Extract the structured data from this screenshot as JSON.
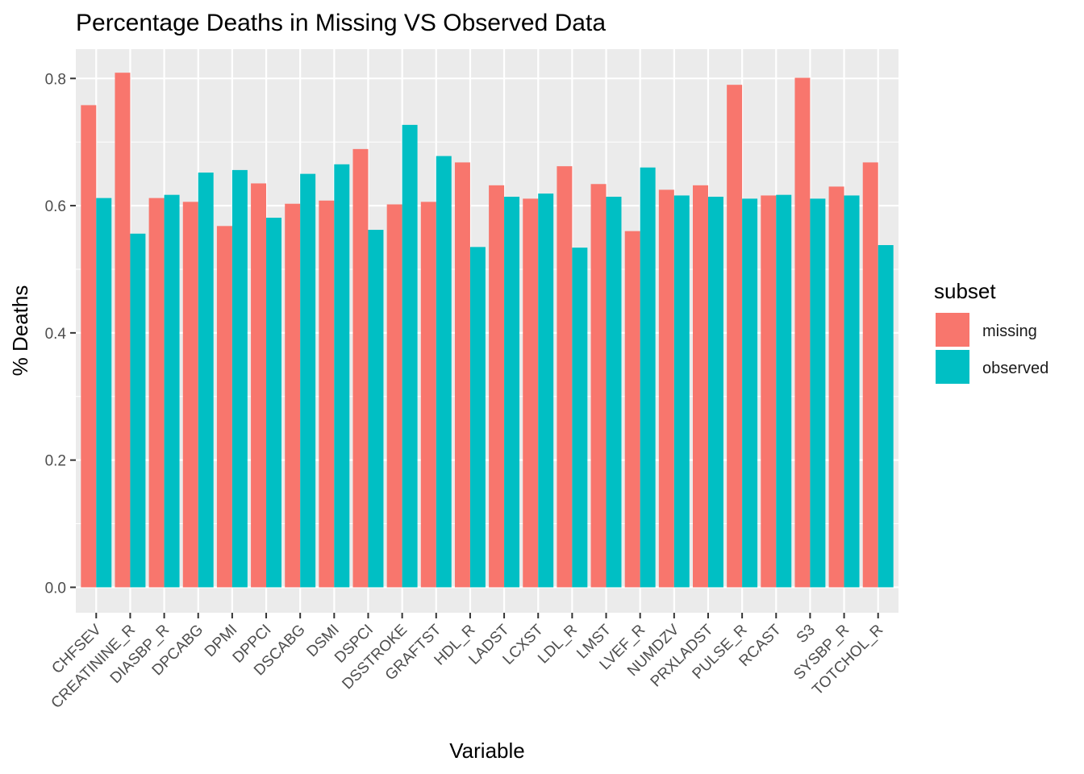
{
  "chart_data": {
    "type": "bar",
    "title": "Percentage Deaths in Missing VS Observed Data",
    "xlabel": "Variable",
    "ylabel": "% Deaths",
    "ylim": [
      -0.04,
      0.846
    ],
    "yticks": [
      0.0,
      0.2,
      0.4,
      0.6,
      0.8
    ],
    "ytick_labels": [
      "0.0",
      "0.2",
      "0.4",
      "0.6",
      "0.8"
    ],
    "grid": true,
    "legend": {
      "title": "subset",
      "placement": "right"
    },
    "categories": [
      "CHFSEV",
      "CREATININE_R",
      "DIASBP_R",
      "DPCABG",
      "DPMI",
      "DPPCI",
      "DSCABG",
      "DSMI",
      "DSPCI",
      "DSSTROKE",
      "GRAFTST",
      "HDL_R",
      "LADST",
      "LCXST",
      "LDL_R",
      "LMST",
      "LVEF_R",
      "NUMDZV",
      "PRXLADST",
      "PULSE_R",
      "RCAST",
      "S3",
      "SYSBP_R",
      "TOTCHOL_R"
    ],
    "series": [
      {
        "name": "missing",
        "color": "#F8766D",
        "values": [
          0.758,
          0.809,
          0.612,
          0.606,
          0.568,
          0.635,
          0.603,
          0.608,
          0.689,
          0.602,
          0.606,
          0.668,
          0.632,
          0.611,
          0.662,
          0.634,
          0.56,
          0.625,
          0.632,
          0.79,
          0.616,
          0.801,
          0.63,
          0.668
        ]
      },
      {
        "name": "observed",
        "color": "#00BFC4",
        "values": [
          0.612,
          0.556,
          0.617,
          0.652,
          0.656,
          0.581,
          0.65,
          0.665,
          0.562,
          0.727,
          0.678,
          0.535,
          0.614,
          0.619,
          0.534,
          0.614,
          0.66,
          0.616,
          0.614,
          0.611,
          0.617,
          0.611,
          0.616,
          0.538
        ]
      }
    ]
  }
}
